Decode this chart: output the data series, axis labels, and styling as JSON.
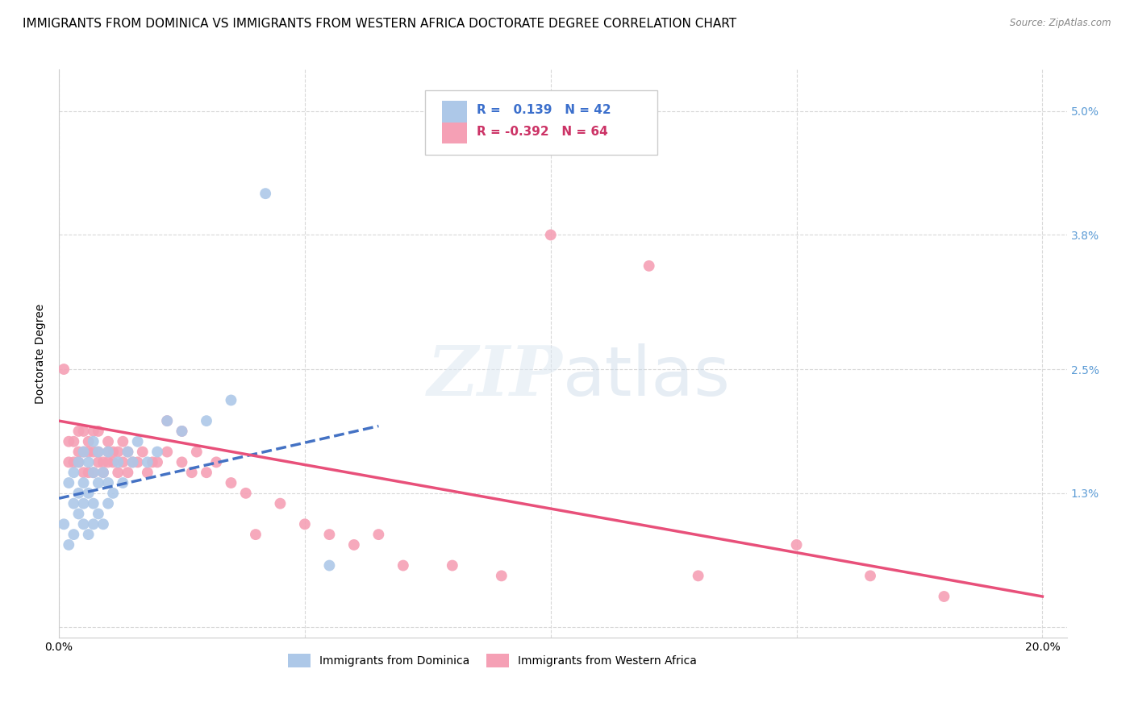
{
  "title": "IMMIGRANTS FROM DOMINICA VS IMMIGRANTS FROM WESTERN AFRICA DOCTORATE DEGREE CORRELATION CHART",
  "source": "Source: ZipAtlas.com",
  "ylabel": "Doctorate Degree",
  "xlim": [
    0.0,
    0.205
  ],
  "ylim": [
    -0.001,
    0.054
  ],
  "dominica_R": 0.139,
  "dominica_N": 42,
  "western_africa_R": -0.392,
  "western_africa_N": 64,
  "dominica_color": "#adc8e8",
  "western_africa_color": "#f5a0b5",
  "dominica_line_color": "#4472c4",
  "western_africa_line_color": "#e8507a",
  "dominica_trend_x": [
    0.0,
    0.065
  ],
  "dominica_trend_y": [
    0.0125,
    0.0195
  ],
  "western_africa_trend_x": [
    0.0,
    0.2
  ],
  "western_africa_trend_y": [
    0.02,
    0.003
  ],
  "dominica_scatter_x": [
    0.001,
    0.002,
    0.002,
    0.003,
    0.003,
    0.003,
    0.004,
    0.004,
    0.004,
    0.005,
    0.005,
    0.005,
    0.005,
    0.006,
    0.006,
    0.006,
    0.007,
    0.007,
    0.007,
    0.007,
    0.008,
    0.008,
    0.008,
    0.009,
    0.009,
    0.01,
    0.01,
    0.01,
    0.011,
    0.012,
    0.013,
    0.014,
    0.015,
    0.016,
    0.018,
    0.02,
    0.022,
    0.025,
    0.03,
    0.035,
    0.042,
    0.055
  ],
  "dominica_scatter_y": [
    0.01,
    0.008,
    0.014,
    0.009,
    0.012,
    0.015,
    0.011,
    0.013,
    0.016,
    0.01,
    0.012,
    0.014,
    0.017,
    0.009,
    0.013,
    0.016,
    0.01,
    0.012,
    0.015,
    0.018,
    0.011,
    0.014,
    0.017,
    0.01,
    0.015,
    0.012,
    0.014,
    0.017,
    0.013,
    0.016,
    0.014,
    0.017,
    0.016,
    0.018,
    0.016,
    0.017,
    0.02,
    0.019,
    0.02,
    0.022,
    0.042,
    0.006
  ],
  "western_africa_scatter_x": [
    0.001,
    0.002,
    0.002,
    0.003,
    0.003,
    0.004,
    0.004,
    0.004,
    0.005,
    0.005,
    0.005,
    0.006,
    0.006,
    0.006,
    0.007,
    0.007,
    0.007,
    0.008,
    0.008,
    0.008,
    0.009,
    0.009,
    0.01,
    0.01,
    0.01,
    0.011,
    0.011,
    0.012,
    0.012,
    0.013,
    0.013,
    0.014,
    0.014,
    0.015,
    0.016,
    0.017,
    0.018,
    0.019,
    0.02,
    0.022,
    0.022,
    0.025,
    0.025,
    0.027,
    0.028,
    0.03,
    0.032,
    0.035,
    0.038,
    0.04,
    0.045,
    0.05,
    0.055,
    0.06,
    0.065,
    0.07,
    0.08,
    0.09,
    0.1,
    0.12,
    0.13,
    0.15,
    0.165,
    0.18
  ],
  "western_africa_scatter_y": [
    0.025,
    0.016,
    0.018,
    0.016,
    0.018,
    0.016,
    0.017,
    0.019,
    0.015,
    0.017,
    0.019,
    0.015,
    0.017,
    0.018,
    0.015,
    0.017,
    0.019,
    0.016,
    0.017,
    0.019,
    0.015,
    0.016,
    0.016,
    0.017,
    0.018,
    0.016,
    0.017,
    0.015,
    0.017,
    0.016,
    0.018,
    0.015,
    0.017,
    0.016,
    0.016,
    0.017,
    0.015,
    0.016,
    0.016,
    0.017,
    0.02,
    0.016,
    0.019,
    0.015,
    0.017,
    0.015,
    0.016,
    0.014,
    0.013,
    0.009,
    0.012,
    0.01,
    0.009,
    0.008,
    0.009,
    0.006,
    0.006,
    0.005,
    0.038,
    0.035,
    0.005,
    0.008,
    0.005,
    0.003
  ],
  "ytick_vals": [
    0.0,
    0.013,
    0.025,
    0.038,
    0.05
  ],
  "ytick_labels": [
    "",
    "1.3%",
    "2.5%",
    "3.8%",
    "5.0%"
  ],
  "xtick_vals": [
    0.0,
    0.05,
    0.1,
    0.15,
    0.2
  ],
  "xtick_labels": [
    "0.0%",
    "",
    "",
    "",
    "20.0%"
  ],
  "background_color": "#ffffff",
  "grid_color": "#d8d8d8",
  "title_fontsize": 11,
  "axis_label_fontsize": 10,
  "tick_fontsize": 10,
  "legend_fontsize": 11,
  "right_tick_color": "#5b9bd5",
  "marker_size": 100
}
